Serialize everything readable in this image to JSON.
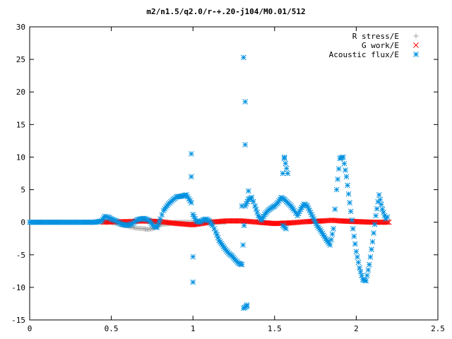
{
  "chart_data": {
    "type": "scatter",
    "title": "m2/n1.5/q2.0/r-+.20-j104/M0.01/512",
    "xlabel": "",
    "ylabel": "",
    "xlim": [
      0,
      2.5
    ],
    "ylim": [
      -15,
      30
    ],
    "xticks": [
      0,
      0.5,
      1,
      1.5,
      2,
      2.5
    ],
    "xtick_labels": [
      "0",
      "0.5",
      "1",
      "1.5",
      "2",
      "2.5"
    ],
    "yticks": [
      -15,
      -10,
      -5,
      0,
      5,
      10,
      15,
      20,
      25,
      30
    ],
    "ytick_labels": [
      "-15",
      "-10",
      "-5",
      "0",
      "5",
      "10",
      "15",
      "20",
      "25",
      "30"
    ],
    "grid": false,
    "legend_position": "top-right",
    "series": [
      {
        "name": "R stress/E",
        "marker": "plus",
        "color": "#a0a0a0",
        "x": [
          0.0,
          0.1,
          0.2,
          0.3,
          0.4,
          0.45,
          0.5,
          0.55,
          0.6,
          0.65,
          0.7,
          0.72,
          0.75,
          0.78,
          0.8,
          0.85,
          0.9,
          1.0,
          1.1,
          1.2
        ],
        "y": [
          0,
          0,
          0,
          0,
          0,
          0.1,
          0,
          -0.3,
          -0.6,
          -0.9,
          -1.0,
          -1.1,
          -1.0,
          -0.7,
          -0.4,
          -0.2,
          0,
          0,
          0,
          0
        ]
      },
      {
        "name": "G work/E",
        "marker": "cross",
        "color": "#ff0000",
        "x": [
          0.45,
          0.5,
          0.6,
          0.7,
          0.8,
          0.9,
          1.0,
          1.1,
          1.2,
          1.3,
          1.4,
          1.5,
          1.6,
          1.7,
          1.8,
          1.85,
          1.9,
          2.0,
          2.1,
          2.2
        ],
        "y": [
          0.0,
          0.05,
          0.1,
          0.2,
          0.1,
          -0.2,
          -0.4,
          0.0,
          0.2,
          0.2,
          0.0,
          -0.2,
          -0.1,
          0.1,
          0.2,
          0.3,
          0.2,
          0.1,
          0.0,
          0.0
        ]
      },
      {
        "name": "Acoustic flux/E",
        "marker": "star",
        "color": "#0090e0",
        "x": [
          0.0,
          0.05,
          0.1,
          0.15,
          0.2,
          0.25,
          0.3,
          0.35,
          0.4,
          0.44,
          0.46,
          0.48,
          0.5,
          0.53,
          0.56,
          0.6,
          0.63,
          0.66,
          0.7,
          0.73,
          0.76,
          0.78,
          0.8,
          0.82,
          0.85,
          0.88,
          0.9,
          0.93,
          0.96,
          0.99,
          1.0,
          1.02,
          1.04,
          1.06,
          1.08,
          1.1,
          1.12,
          1.14,
          1.16,
          1.18,
          1.2,
          1.22,
          1.24,
          1.26,
          1.28,
          1.3,
          1.32,
          1.34,
          1.36,
          1.38,
          1.4,
          1.42,
          1.44,
          1.46,
          1.48,
          1.5,
          1.52,
          1.54,
          1.56,
          1.58,
          1.6,
          1.62,
          1.64,
          1.66,
          1.68,
          1.7,
          1.72,
          1.74,
          1.76,
          1.78,
          1.8,
          1.82,
          1.84,
          1.86,
          1.88,
          1.9,
          1.92,
          1.94,
          1.96,
          1.98,
          2.0,
          2.02,
          2.04,
          2.06,
          2.08,
          2.1,
          2.12,
          2.14,
          2.16,
          2.18,
          2.19,
          0.99,
          0.99,
          1.0,
          1.0,
          1.31,
          1.32,
          1.32,
          1.33,
          1.31,
          1.33,
          1.34,
          1.3,
          1.55,
          1.56,
          1.56,
          1.58,
          1.55,
          1.57
        ],
        "y": [
          0,
          0,
          0,
          0,
          0,
          0,
          0,
          0,
          0,
          0.2,
          0.9,
          0.8,
          0.5,
          0.2,
          -0.3,
          -0.5,
          -0.2,
          0.4,
          0.6,
          0.3,
          -0.6,
          -0.8,
          0.5,
          1.8,
          2.8,
          3.5,
          3.9,
          4.0,
          4.2,
          3.0,
          1.2,
          0.2,
          0.0,
          0.3,
          0.5,
          0.2,
          -0.5,
          -1.5,
          -2.8,
          -3.5,
          -4.2,
          -4.8,
          -5.2,
          -5.8,
          -6.3,
          -6.5,
          2.5,
          3.5,
          3.8,
          2.5,
          1.0,
          0.3,
          1.2,
          1.8,
          2.2,
          2.5,
          3.0,
          3.8,
          3.5,
          3.0,
          2.5,
          1.8,
          1.0,
          2.0,
          2.8,
          2.5,
          1.5,
          0.5,
          -0.5,
          -1.2,
          -2.0,
          -2.8,
          -3.5,
          -1.0,
          5.0,
          9.8,
          10.0,
          7.0,
          3.0,
          -1.0,
          -4.5,
          -7.0,
          -8.8,
          -9.0,
          -6.5,
          -3.0,
          1.0,
          4.2,
          2.0,
          0.5,
          0.8,
          10.5,
          7.0,
          -5.3,
          -9.2,
          25.3,
          18.5,
          11.9,
          -12.7,
          -13.2,
          -12.9,
          4.8,
          2.5,
          7.5,
          10.0,
          9.8,
          7.5,
          -0.5,
          -1.0
        ]
      }
    ]
  }
}
